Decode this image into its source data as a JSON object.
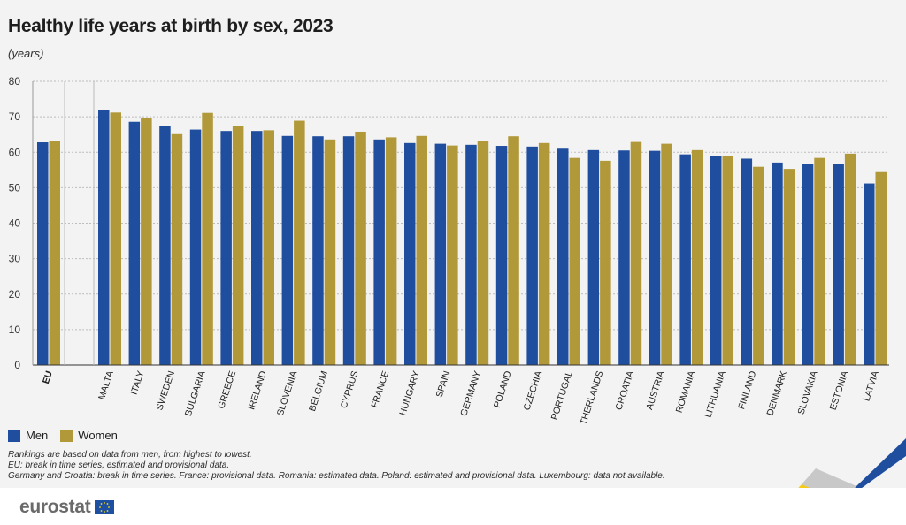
{
  "header": {
    "title": "Healthy life years at birth by sex, 2023",
    "unit": "(years)"
  },
  "legend": {
    "men": "Men",
    "women": "Women"
  },
  "colors": {
    "men": "#1f4e9f",
    "women": "#b19839",
    "grid": "#bdbdbd",
    "axis": "#333333"
  },
  "notes": [
    "Rankings are based on data from men, from highest to lowest.",
    "EU: break in time series, estimated and provisional data.",
    "Germany and Croatia: break in time series. France: provisional data. Romania: estimated data. Poland: estimated and provisional data. Luxembourg: data not available."
  ],
  "footer": {
    "brand": "eurostat",
    "flag_icon": "eu-flag-icon"
  },
  "chart_data": {
    "type": "bar",
    "title": "Healthy life years at birth by sex, 2023",
    "ylabel": "(years)",
    "xlabel": "",
    "ylim": [
      0,
      80
    ],
    "yticks": [
      0,
      10,
      20,
      30,
      40,
      50,
      60,
      70,
      80
    ],
    "grid": true,
    "legend_position": "bottom-left",
    "categories": [
      "EU",
      "MALTA",
      "ITALY",
      "SWEDEN",
      "BULGARIA",
      "GREECE",
      "IRELAND",
      "SLOVENIA",
      "BELGIUM",
      "CYPRUS",
      "FRANCE",
      "HUNGARY",
      "SPAIN",
      "GERMANY",
      "POLAND",
      "CZECHIA",
      "PORTUGAL",
      "NETHERLANDS",
      "CROATIA",
      "AUSTRIA",
      "ROMANIA",
      "LITHUANIA",
      "FINLAND",
      "DENMARK",
      "SLOVAKIA",
      "ESTONIA",
      "LATVIA"
    ],
    "bold_categories": [
      "EU"
    ],
    "series": [
      {
        "name": "Men",
        "values": [
          62.8,
          71.8,
          68.6,
          67.3,
          66.4,
          66.0,
          66.0,
          64.6,
          64.5,
          64.5,
          63.6,
          62.6,
          62.4,
          62.1,
          61.8,
          61.6,
          61.0,
          60.6,
          60.5,
          60.4,
          59.4,
          59.0,
          58.2,
          57.1,
          56.8,
          56.6,
          51.2
        ]
      },
      {
        "name": "Women",
        "values": [
          63.3,
          71.2,
          69.7,
          65.1,
          71.1,
          67.4,
          66.2,
          68.9,
          63.6,
          65.8,
          64.2,
          64.6,
          61.9,
          63.1,
          64.5,
          62.6,
          58.4,
          57.6,
          62.9,
          62.4,
          60.6,
          58.9,
          55.9,
          55.3,
          58.4,
          59.6,
          54.4
        ]
      }
    ]
  }
}
